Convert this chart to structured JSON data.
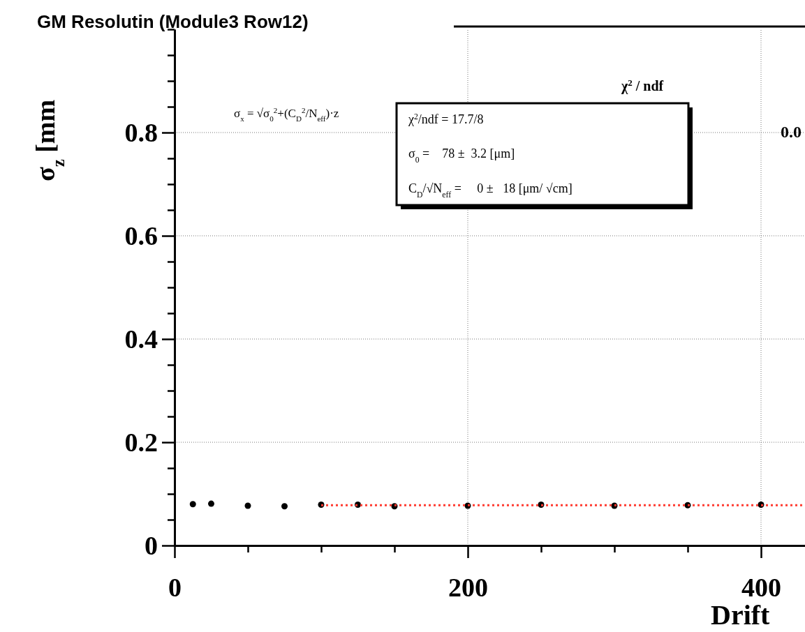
{
  "chart_data": {
    "type": "scatter",
    "title": "GM Resolutin (Module3 Row12)",
    "xlabel": "Drift",
    "ylabel": "σ$_{z}$ [mm",
    "x": [
      12.5,
      25,
      50,
      75,
      100,
      125,
      150,
      200,
      250,
      300,
      350,
      400
    ],
    "series": [
      {
        "color": "#000000",
        "marker": "circle",
        "values": [
          0.08,
          0.081,
          0.077,
          0.076,
          0.079,
          0.079,
          0.076,
          0.077,
          0.079,
          0.077,
          0.078,
          0.079
        ]
      },
      {
        "type": "line",
        "color": "#ff3b30",
        "line_style": "dotted",
        "x": [
          100,
          430
        ],
        "values": [
          0.078,
          0.078
        ]
      }
    ],
    "xlim": [
      0,
      430
    ],
    "xticks": [
      0,
      200,
      400
    ],
    "ylim": [
      0,
      1
    ],
    "yticks": [
      0,
      0.2,
      0.4,
      0.6,
      0.8
    ],
    "grid": true,
    "annotations": [
      "σ$_{x}$ = √σ$_{0}$$^{2}$+(C$_{D}$$^{2}$/N$_{eff}$)·z",
      "χ$^{2}$/ndf = 17.7/8",
      "σ$_{0}$ =    78 ±  3.2 [μm]",
      "C$_{D}$/√N$_{eff}$ =     0 ±   18 [μm/ √cm]",
      "χ$^{2}$ / ndf",
      "0.0"
    ]
  }
}
